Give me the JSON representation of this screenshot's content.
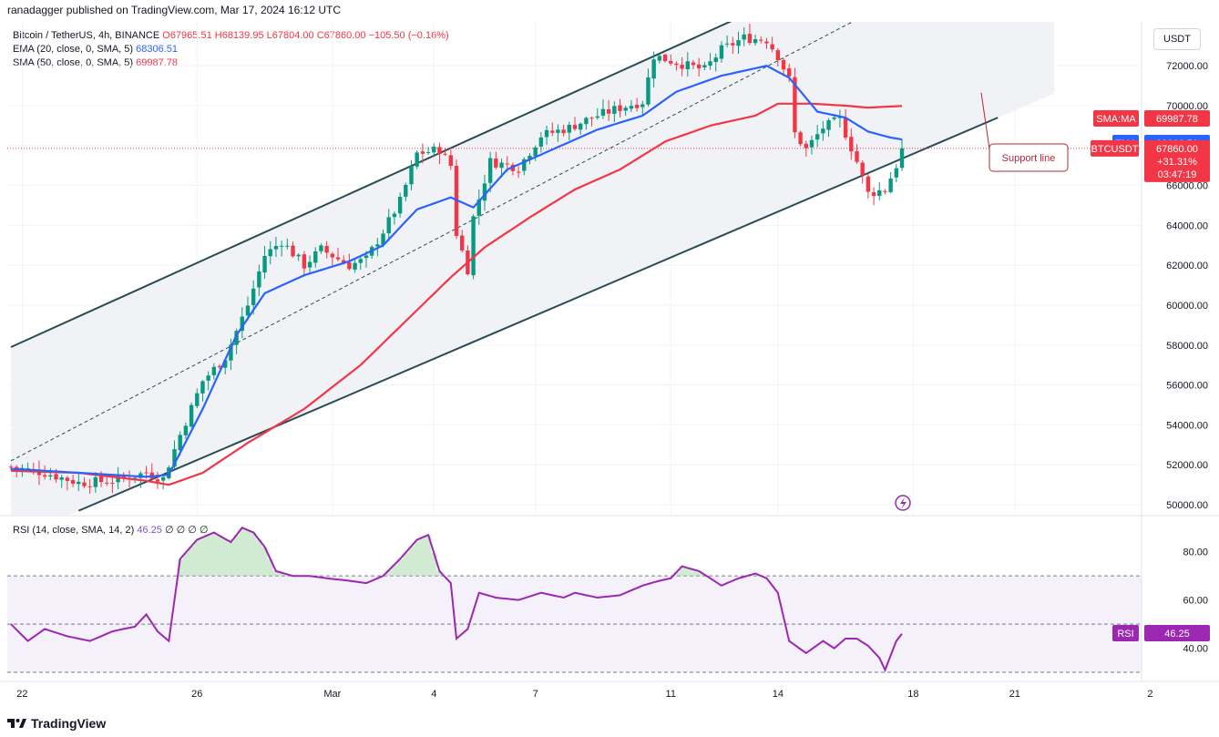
{
  "header": {
    "published": "ranadagger published on TradingView.com, Mar 17, 2024 16:12 UTC",
    "unit": "USDT"
  },
  "legend": {
    "symbol": "Bitcoin / TetherUS, 4h, BINANCE",
    "ohlc": "O67965.51 H68139.95 L67804.00 C67860.00 −105.50 (−0.16%)",
    "ema_label": "EMA (20, close, 0, SMA, 5)",
    "ema_value": "68306.51",
    "sma_label": "SMA (50, close, 0, SMA, 5)",
    "sma_value": "69987.78"
  },
  "rsi_legend": {
    "label": "RSI (14, close, SMA, 14, 2)",
    "value": "46.25",
    "extra": "∅ ∅ ∅ ∅"
  },
  "badges": {
    "sma_tag": "SMA:MA",
    "sma_price": "69987.78",
    "ema_tag": "EMA",
    "ema_price": "68306.51",
    "btc_tag": "BTCUSDT",
    "btc_price": "67860.00",
    "btc_change": "+31.31%",
    "btc_timer": "03:47:19",
    "rsi_tag": "RSI",
    "rsi_price": "46.25"
  },
  "annotation": "Support line",
  "footer": {
    "brand": "TradingView"
  },
  "colors": {
    "up": "#089981",
    "down": "#f23645",
    "ema": "#2962ff",
    "sma": "#f23645",
    "rsi": "#9c27b0",
    "channel": "#2a4b55"
  },
  "chart_data": {
    "type": "candlestick",
    "y_ticks": [
      "72000.00",
      "70000.00",
      "68000.00",
      "66000.00",
      "64000.00",
      "62000.00",
      "60000.00",
      "58000.00",
      "56000.00",
      "54000.00",
      "52000.00",
      "50000.00"
    ],
    "ylim": [
      49500,
      74200
    ],
    "x_ticks": [
      "22",
      "26",
      "Mar",
      "4",
      "7",
      "11",
      "14",
      "18",
      "21",
      "2"
    ],
    "rsi_ticks": [
      "80.00",
      "60.00",
      "40.00"
    ],
    "rsi_ylim": [
      27,
      95
    ],
    "rsi_bands": [
      70,
      50,
      30
    ],
    "price_keyframes": [
      [
        0,
        51900
      ],
      [
        6,
        51600
      ],
      [
        12,
        51100
      ],
      [
        18,
        51200
      ],
      [
        24,
        51600
      ],
      [
        27,
        51300
      ],
      [
        30,
        53500
      ],
      [
        34,
        56200
      ],
      [
        38,
        57400
      ],
      [
        42,
        60000
      ],
      [
        45,
        62500
      ],
      [
        48,
        63200
      ],
      [
        52,
        62000
      ],
      [
        55,
        62800
      ],
      [
        60,
        62000
      ],
      [
        63,
        62300
      ],
      [
        66,
        63700
      ],
      [
        69,
        65200
      ],
      [
        72,
        67600
      ],
      [
        76,
        67800
      ],
      [
        78,
        67000
      ],
      [
        79,
        63600
      ],
      [
        81,
        61800
      ],
      [
        82,
        64400
      ],
      [
        85,
        67200
      ],
      [
        90,
        66900
      ],
      [
        94,
        68500
      ],
      [
        99,
        68900
      ],
      [
        103,
        69400
      ],
      [
        108,
        69900
      ],
      [
        112,
        70200
      ],
      [
        114,
        72500
      ],
      [
        120,
        72000
      ],
      [
        123,
        71800
      ],
      [
        126,
        72800
      ],
      [
        130,
        73400
      ],
      [
        134,
        73300
      ],
      [
        136,
        72500
      ],
      [
        138,
        71300
      ],
      [
        139,
        68600
      ],
      [
        141,
        67800
      ],
      [
        144,
        68900
      ],
      [
        147,
        69300
      ],
      [
        150,
        67200
      ],
      [
        152,
        65600
      ],
      [
        155,
        65800
      ],
      [
        157,
        67000
      ],
      [
        158,
        67860
      ]
    ],
    "ema_keyframes": [
      [
        0,
        51800
      ],
      [
        12,
        51600
      ],
      [
        24,
        51400
      ],
      [
        28,
        51500
      ],
      [
        34,
        54800
      ],
      [
        40,
        58500
      ],
      [
        45,
        60600
      ],
      [
        52,
        61500
      ],
      [
        60,
        62200
      ],
      [
        66,
        63000
      ],
      [
        72,
        64800
      ],
      [
        78,
        65400
      ],
      [
        82,
        64900
      ],
      [
        88,
        66800
      ],
      [
        96,
        67800
      ],
      [
        104,
        68800
      ],
      [
        112,
        69500
      ],
      [
        118,
        70700
      ],
      [
        126,
        71500
      ],
      [
        134,
        72000
      ],
      [
        138,
        71400
      ],
      [
        143,
        69700
      ],
      [
        148,
        69400
      ],
      [
        152,
        68700
      ],
      [
        156,
        68400
      ],
      [
        158,
        68306
      ]
    ],
    "sma_keyframes": [
      [
        0,
        51700
      ],
      [
        12,
        51600
      ],
      [
        24,
        51200
      ],
      [
        28,
        51000
      ],
      [
        34,
        51600
      ],
      [
        42,
        53100
      ],
      [
        52,
        54800
      ],
      [
        62,
        57000
      ],
      [
        70,
        59200
      ],
      [
        78,
        61400
      ],
      [
        84,
        62900
      ],
      [
        92,
        64400
      ],
      [
        100,
        65800
      ],
      [
        108,
        66800
      ],
      [
        116,
        68200
      ],
      [
        124,
        69000
      ],
      [
        132,
        69500
      ],
      [
        136,
        70100
      ],
      [
        142,
        70100
      ],
      [
        148,
        70000
      ],
      [
        152,
        69900
      ],
      [
        158,
        69988
      ]
    ],
    "rsi_keyframes": [
      [
        0,
        50
      ],
      [
        3,
        43
      ],
      [
        6,
        48
      ],
      [
        10,
        45
      ],
      [
        14,
        43
      ],
      [
        18,
        47
      ],
      [
        22,
        49
      ],
      [
        24,
        54
      ],
      [
        26,
        47
      ],
      [
        28,
        43
      ],
      [
        30,
        77
      ],
      [
        33,
        85
      ],
      [
        36,
        88
      ],
      [
        39,
        84
      ],
      [
        41,
        90
      ],
      [
        43,
        88
      ],
      [
        45,
        82
      ],
      [
        47,
        72
      ],
      [
        50,
        70
      ],
      [
        53,
        70
      ],
      [
        56,
        69
      ],
      [
        60,
        68
      ],
      [
        63,
        67
      ],
      [
        66,
        70
      ],
      [
        69,
        77
      ],
      [
        72,
        85
      ],
      [
        74,
        87
      ],
      [
        76,
        72
      ],
      [
        78,
        67
      ],
      [
        79,
        44
      ],
      [
        81,
        48
      ],
      [
        83,
        63
      ],
      [
        86,
        61
      ],
      [
        90,
        60
      ],
      [
        94,
        63
      ],
      [
        98,
        61
      ],
      [
        100,
        63
      ],
      [
        104,
        61
      ],
      [
        108,
        62
      ],
      [
        112,
        66
      ],
      [
        115,
        68
      ],
      [
        117,
        69
      ],
      [
        119,
        74
      ],
      [
        122,
        72
      ],
      [
        126,
        66
      ],
      [
        129,
        69
      ],
      [
        132,
        71
      ],
      [
        134,
        69
      ],
      [
        136,
        63
      ],
      [
        138,
        43
      ],
      [
        141,
        38
      ],
      [
        144,
        43
      ],
      [
        146,
        40
      ],
      [
        148,
        44
      ],
      [
        150,
        44
      ],
      [
        152,
        41
      ],
      [
        154,
        36
      ],
      [
        155,
        31
      ],
      [
        157,
        43
      ],
      [
        158,
        46
      ]
    ],
    "channel": {
      "upper": [
        [
          0,
          57900
        ],
        [
          129,
          74400
        ]
      ],
      "middle": [
        [
          0,
          52200
        ],
        [
          158,
          75500
        ]
      ],
      "lower": [
        [
          12,
          49700
        ],
        [
          175,
          69400
        ]
      ]
    },
    "annotation_tip_price": 70650
  }
}
